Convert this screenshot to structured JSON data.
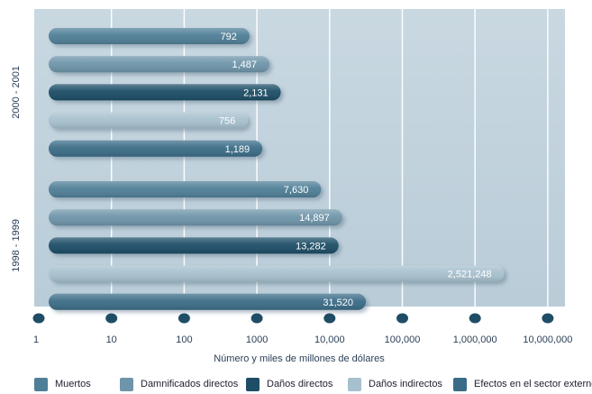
{
  "chart_data": {
    "type": "bar",
    "orientation": "horizontal",
    "scale": "log",
    "xlabel": "Número y miles de millones de dólares",
    "xlim": [
      1,
      10000000
    ],
    "x_ticks": [
      "1",
      "10",
      "100",
      "1000",
      "10,000",
      "100,000",
      "1,000,000",
      "10,000,000"
    ],
    "groups": [
      "2000 - 2001",
      "1998 - 1999"
    ],
    "series": [
      {
        "name": "Muertos",
        "color": "#4f7f97",
        "values": [
          792,
          7630
        ],
        "labels": [
          "792",
          "7,630"
        ]
      },
      {
        "name": "Damnificados directos",
        "color": "#6e95a9",
        "values": [
          1487,
          14897
        ],
        "labels": [
          "1,487",
          "14,897"
        ]
      },
      {
        "name": "Daños directos",
        "color": "#1f4d66",
        "values": [
          2131,
          13282
        ],
        "labels": [
          "2,131",
          "13,282"
        ]
      },
      {
        "name": "Daños indirectos",
        "color": "#a7c0ce",
        "values": [
          756,
          2521248
        ],
        "labels": [
          "756",
          "2,521,248"
        ]
      },
      {
        "name": "Efectos en el sector externo",
        "color": "#3a6c87",
        "values": [
          1189,
          31520
        ],
        "labels": [
          "1,189",
          "31,520"
        ]
      }
    ],
    "legend_position": "bottom",
    "grid": true
  }
}
